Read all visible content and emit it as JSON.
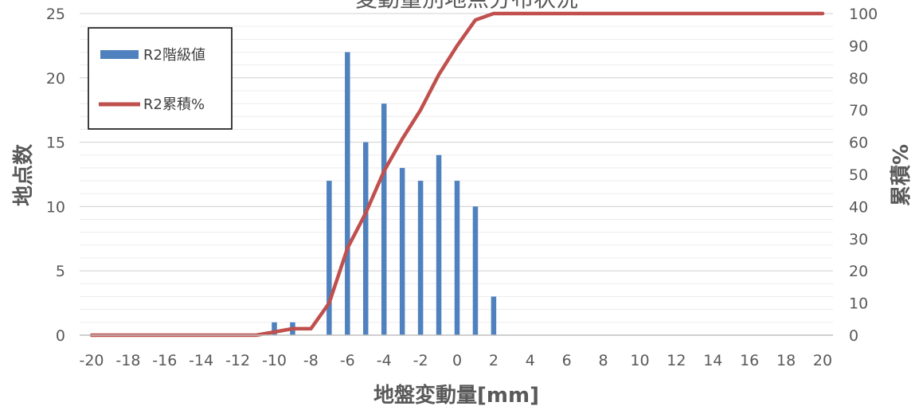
{
  "chart_data": {
    "type": "bar",
    "title": "変動量別地点分布状況",
    "xlabel": "地盤変動量[mm]",
    "ylabel": "地点数",
    "y2label": "累積%",
    "x": [
      -20,
      -19,
      -18,
      -17,
      -16,
      -15,
      -14,
      -13,
      -12,
      -11,
      -10,
      -9,
      -8,
      -7,
      -6,
      -5,
      -4,
      -3,
      -2,
      -1,
      0,
      1,
      2,
      3,
      4,
      5,
      6,
      7,
      8,
      9,
      10,
      11,
      12,
      13,
      14,
      15,
      16,
      17,
      18,
      19,
      20
    ],
    "x_ticks": [
      -20,
      -18,
      -16,
      -14,
      -12,
      -10,
      -8,
      -6,
      -4,
      -2,
      0,
      2,
      4,
      6,
      8,
      10,
      12,
      14,
      16,
      18,
      20
    ],
    "ylim": [
      0,
      25
    ],
    "y_ticks": [
      0,
      5,
      10,
      15,
      20,
      25
    ],
    "y2lim": [
      0,
      100
    ],
    "y2_ticks": [
      0,
      10,
      20,
      30,
      40,
      50,
      60,
      70,
      80,
      90,
      100
    ],
    "grid": true,
    "legend_position": "top-left",
    "series": [
      {
        "name": "R2階級値",
        "type": "bar",
        "axis": "left",
        "color": "#4e81bd",
        "values": [
          0,
          0,
          0,
          0,
          0,
          0,
          0,
          0,
          0,
          0,
          1,
          1,
          0,
          12,
          22,
          15,
          18,
          13,
          12,
          14,
          12,
          10,
          3,
          0,
          0,
          0,
          0,
          0,
          0,
          0,
          0,
          0,
          0,
          0,
          0,
          0,
          0,
          0,
          0,
          0,
          0
        ]
      },
      {
        "name": "R2累積%",
        "type": "line",
        "axis": "right",
        "color": "#c0504d",
        "values": [
          0,
          0,
          0,
          0,
          0,
          0,
          0,
          0,
          0,
          0,
          1,
          2,
          2,
          10,
          27,
          38,
          51,
          61,
          70,
          81,
          90,
          98,
          100,
          100,
          100,
          100,
          100,
          100,
          100,
          100,
          100,
          100,
          100,
          100,
          100,
          100,
          100,
          100,
          100,
          100,
          100
        ]
      }
    ]
  }
}
